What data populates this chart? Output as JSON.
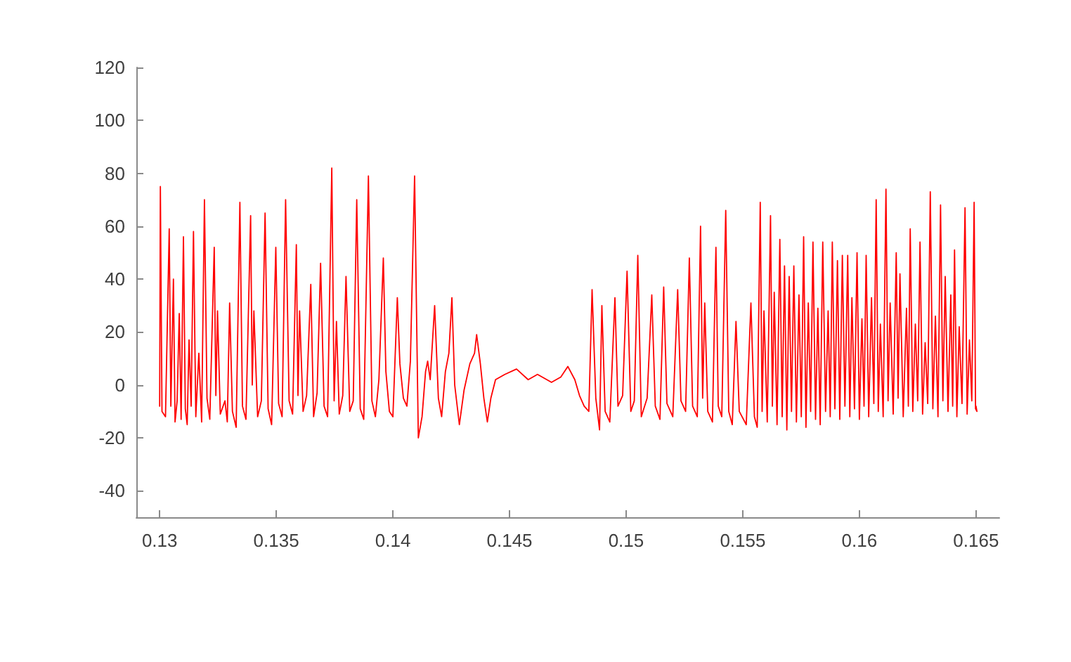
{
  "chart_data": {
    "type": "line",
    "color": "#ff0000",
    "marker": "none",
    "line_style": "solid",
    "xlim": [
      0.129,
      0.166
    ],
    "xticks": [
      0.13,
      0.135,
      0.14,
      0.145,
      0.15,
      0.155,
      0.16,
      0.165
    ],
    "ylim": [
      -50,
      120
    ],
    "yticks": [
      -40,
      -20,
      0,
      20,
      40,
      60,
      80,
      100,
      120
    ],
    "x": [
      0.13,
      0.13003,
      0.1301,
      0.13025,
      0.13041,
      0.13048,
      0.13059,
      0.13066,
      0.13075,
      0.13084,
      0.13092,
      0.13102,
      0.1311,
      0.13118,
      0.13126,
      0.13135,
      0.13145,
      0.13155,
      0.13168,
      0.1318,
      0.13192,
      0.13203,
      0.13215,
      0.13234,
      0.13241,
      0.13248,
      0.1326,
      0.1328,
      0.1329,
      0.133,
      0.13312,
      0.13328,
      0.13344,
      0.13355,
      0.1337,
      0.1339,
      0.13397,
      0.13404,
      0.1342,
      0.13436,
      0.13452,
      0.13465,
      0.1348,
      0.13498,
      0.1351,
      0.13525,
      0.1354,
      0.13555,
      0.1357,
      0.13586,
      0.13593,
      0.136,
      0.13615,
      0.1363,
      0.13648,
      0.1366,
      0.13675,
      0.1369,
      0.13705,
      0.1372,
      0.13738,
      0.13748,
      0.13758,
      0.1377,
      0.13785,
      0.13799,
      0.13815,
      0.1383,
      0.13845,
      0.1386,
      0.13875,
      0.13895,
      0.1391,
      0.13925,
      0.1394,
      0.13959,
      0.1397,
      0.13985,
      0.14,
      0.14019,
      0.1403,
      0.14045,
      0.1406,
      0.14075,
      0.14093,
      0.14109,
      0.14125,
      0.1414,
      0.14149,
      0.1416,
      0.14179,
      0.14195,
      0.14209,
      0.14225,
      0.1424,
      0.14253,
      0.14265,
      0.14285,
      0.14305,
      0.1433,
      0.1435,
      0.14359,
      0.14375,
      0.1439,
      0.14405,
      0.1442,
      0.1444,
      0.1448,
      0.1453,
      0.1458,
      0.1462,
      0.1468,
      0.1472,
      0.1475,
      0.1478,
      0.148,
      0.1482,
      0.1484,
      0.14854,
      0.1487,
      0.14886,
      0.14896,
      0.1491,
      0.1493,
      0.14952,
      0.14965,
      0.14985,
      0.15004,
      0.1502,
      0.15035,
      0.1505,
      0.15065,
      0.1509,
      0.1511,
      0.15125,
      0.15145,
      0.15161,
      0.15175,
      0.152,
      0.15221,
      0.15235,
      0.15255,
      0.15271,
      0.15285,
      0.15305,
      0.15319,
      0.15328,
      0.15337,
      0.1535,
      0.1537,
      0.15385,
      0.15395,
      0.1541,
      0.15427,
      0.1544,
      0.15455,
      0.15471,
      0.15485,
      0.15515,
      0.15535,
      0.1555,
      0.15562,
      0.15575,
      0.15583,
      0.15591,
      0.15605,
      0.15619,
      0.15627,
      0.15635,
      0.15647,
      0.15659,
      0.15669,
      0.15679,
      0.15689,
      0.15699,
      0.15709,
      0.15719,
      0.1573,
      0.15741,
      0.15751,
      0.15761,
      0.15771,
      0.15781,
      0.15791,
      0.15801,
      0.15812,
      0.15822,
      0.15832,
      0.15843,
      0.15855,
      0.15866,
      0.15875,
      0.15884,
      0.15895,
      0.15906,
      0.15916,
      0.15927,
      0.15938,
      0.1595,
      0.15959,
      0.15968,
      0.15979,
      0.1599,
      0.16,
      0.16011,
      0.1602,
      0.16029,
      0.1604,
      0.16052,
      0.16062,
      0.16072,
      0.16081,
      0.1609,
      0.16102,
      0.16114,
      0.16123,
      0.16132,
      0.16145,
      0.16158,
      0.16166,
      0.16174,
      0.16188,
      0.16202,
      0.1621,
      0.16218,
      0.16229,
      0.1624,
      0.1625,
      0.1626,
      0.16271,
      0.16282,
      0.16293,
      0.16304,
      0.16315,
      0.16326,
      0.16337,
      0.16348,
      0.16358,
      0.16368,
      0.1638,
      0.16392,
      0.164,
      0.16408,
      0.16418,
      0.16428,
      0.1644,
      0.16453,
      0.16462,
      0.16472,
      0.16482,
      0.16492,
      0.16498,
      0.16504,
      0.165
    ],
    "values": [
      -8,
      75,
      -10,
      -12,
      59,
      -8,
      40,
      -14,
      -6,
      27,
      -13,
      56,
      -9,
      -15,
      17,
      -8,
      58,
      -12,
      12,
      -14,
      70,
      -5,
      -13,
      52,
      -4,
      28,
      -11,
      -6,
      -14,
      31,
      -10,
      -16,
      69,
      -8,
      -13,
      64,
      0,
      28,
      -12,
      -6,
      65,
      -9,
      -15,
      52,
      -7,
      -12,
      70,
      -6,
      -11,
      53,
      -4,
      28,
      -10,
      -4,
      38,
      -12,
      -3,
      46,
      -8,
      -12,
      82,
      -6,
      24,
      -11,
      -4,
      41,
      -10,
      -6,
      70,
      -9,
      -13,
      79,
      -6,
      -12,
      2,
      48,
      5,
      -10,
      -12,
      33,
      8,
      -5,
      -8,
      9,
      79,
      -20,
      -12,
      5,
      9,
      2,
      30,
      -5,
      -12,
      5,
      12,
      33,
      0,
      -15,
      -2,
      8,
      12,
      19,
      8,
      -5,
      -14,
      -5,
      2,
      4,
      6,
      2,
      4,
      1,
      3,
      7,
      2,
      -4,
      -8,
      -10,
      36,
      -5,
      -17,
      30,
      -10,
      -14,
      33,
      -8,
      -4,
      43,
      -10,
      -6,
      49,
      -12,
      -5,
      34,
      -8,
      -13,
      37,
      -7,
      -12,
      36,
      -6,
      -10,
      48,
      -8,
      -12,
      60,
      -5,
      31,
      -10,
      -14,
      52,
      -8,
      -12,
      66,
      -10,
      -15,
      24,
      -10,
      -15,
      31,
      -12,
      -16,
      69,
      -10,
      28,
      -14,
      64,
      -8,
      35,
      -15,
      55,
      -12,
      45,
      -17,
      41,
      -10,
      45,
      -14,
      34,
      -12,
      56,
      -16,
      31,
      -10,
      54,
      -13,
      29,
      -15,
      54,
      -10,
      28,
      -12,
      54,
      -9,
      47,
      -13,
      49,
      -8,
      49,
      -12,
      33,
      -9,
      50,
      -13,
      25,
      -8,
      49,
      -12,
      33,
      -7,
      70,
      -10,
      23,
      -12,
      74,
      -6,
      31,
      -11,
      50,
      -5,
      42,
      -12,
      29,
      -8,
      59,
      -10,
      23,
      -6,
      54,
      -11,
      16,
      -7,
      73,
      -9,
      26,
      -12,
      68,
      -6,
      41,
      -10,
      34,
      -8,
      51,
      -12,
      22,
      -7,
      67,
      -11,
      17,
      -6,
      69,
      -9,
      -10,
      -8
    ]
  }
}
